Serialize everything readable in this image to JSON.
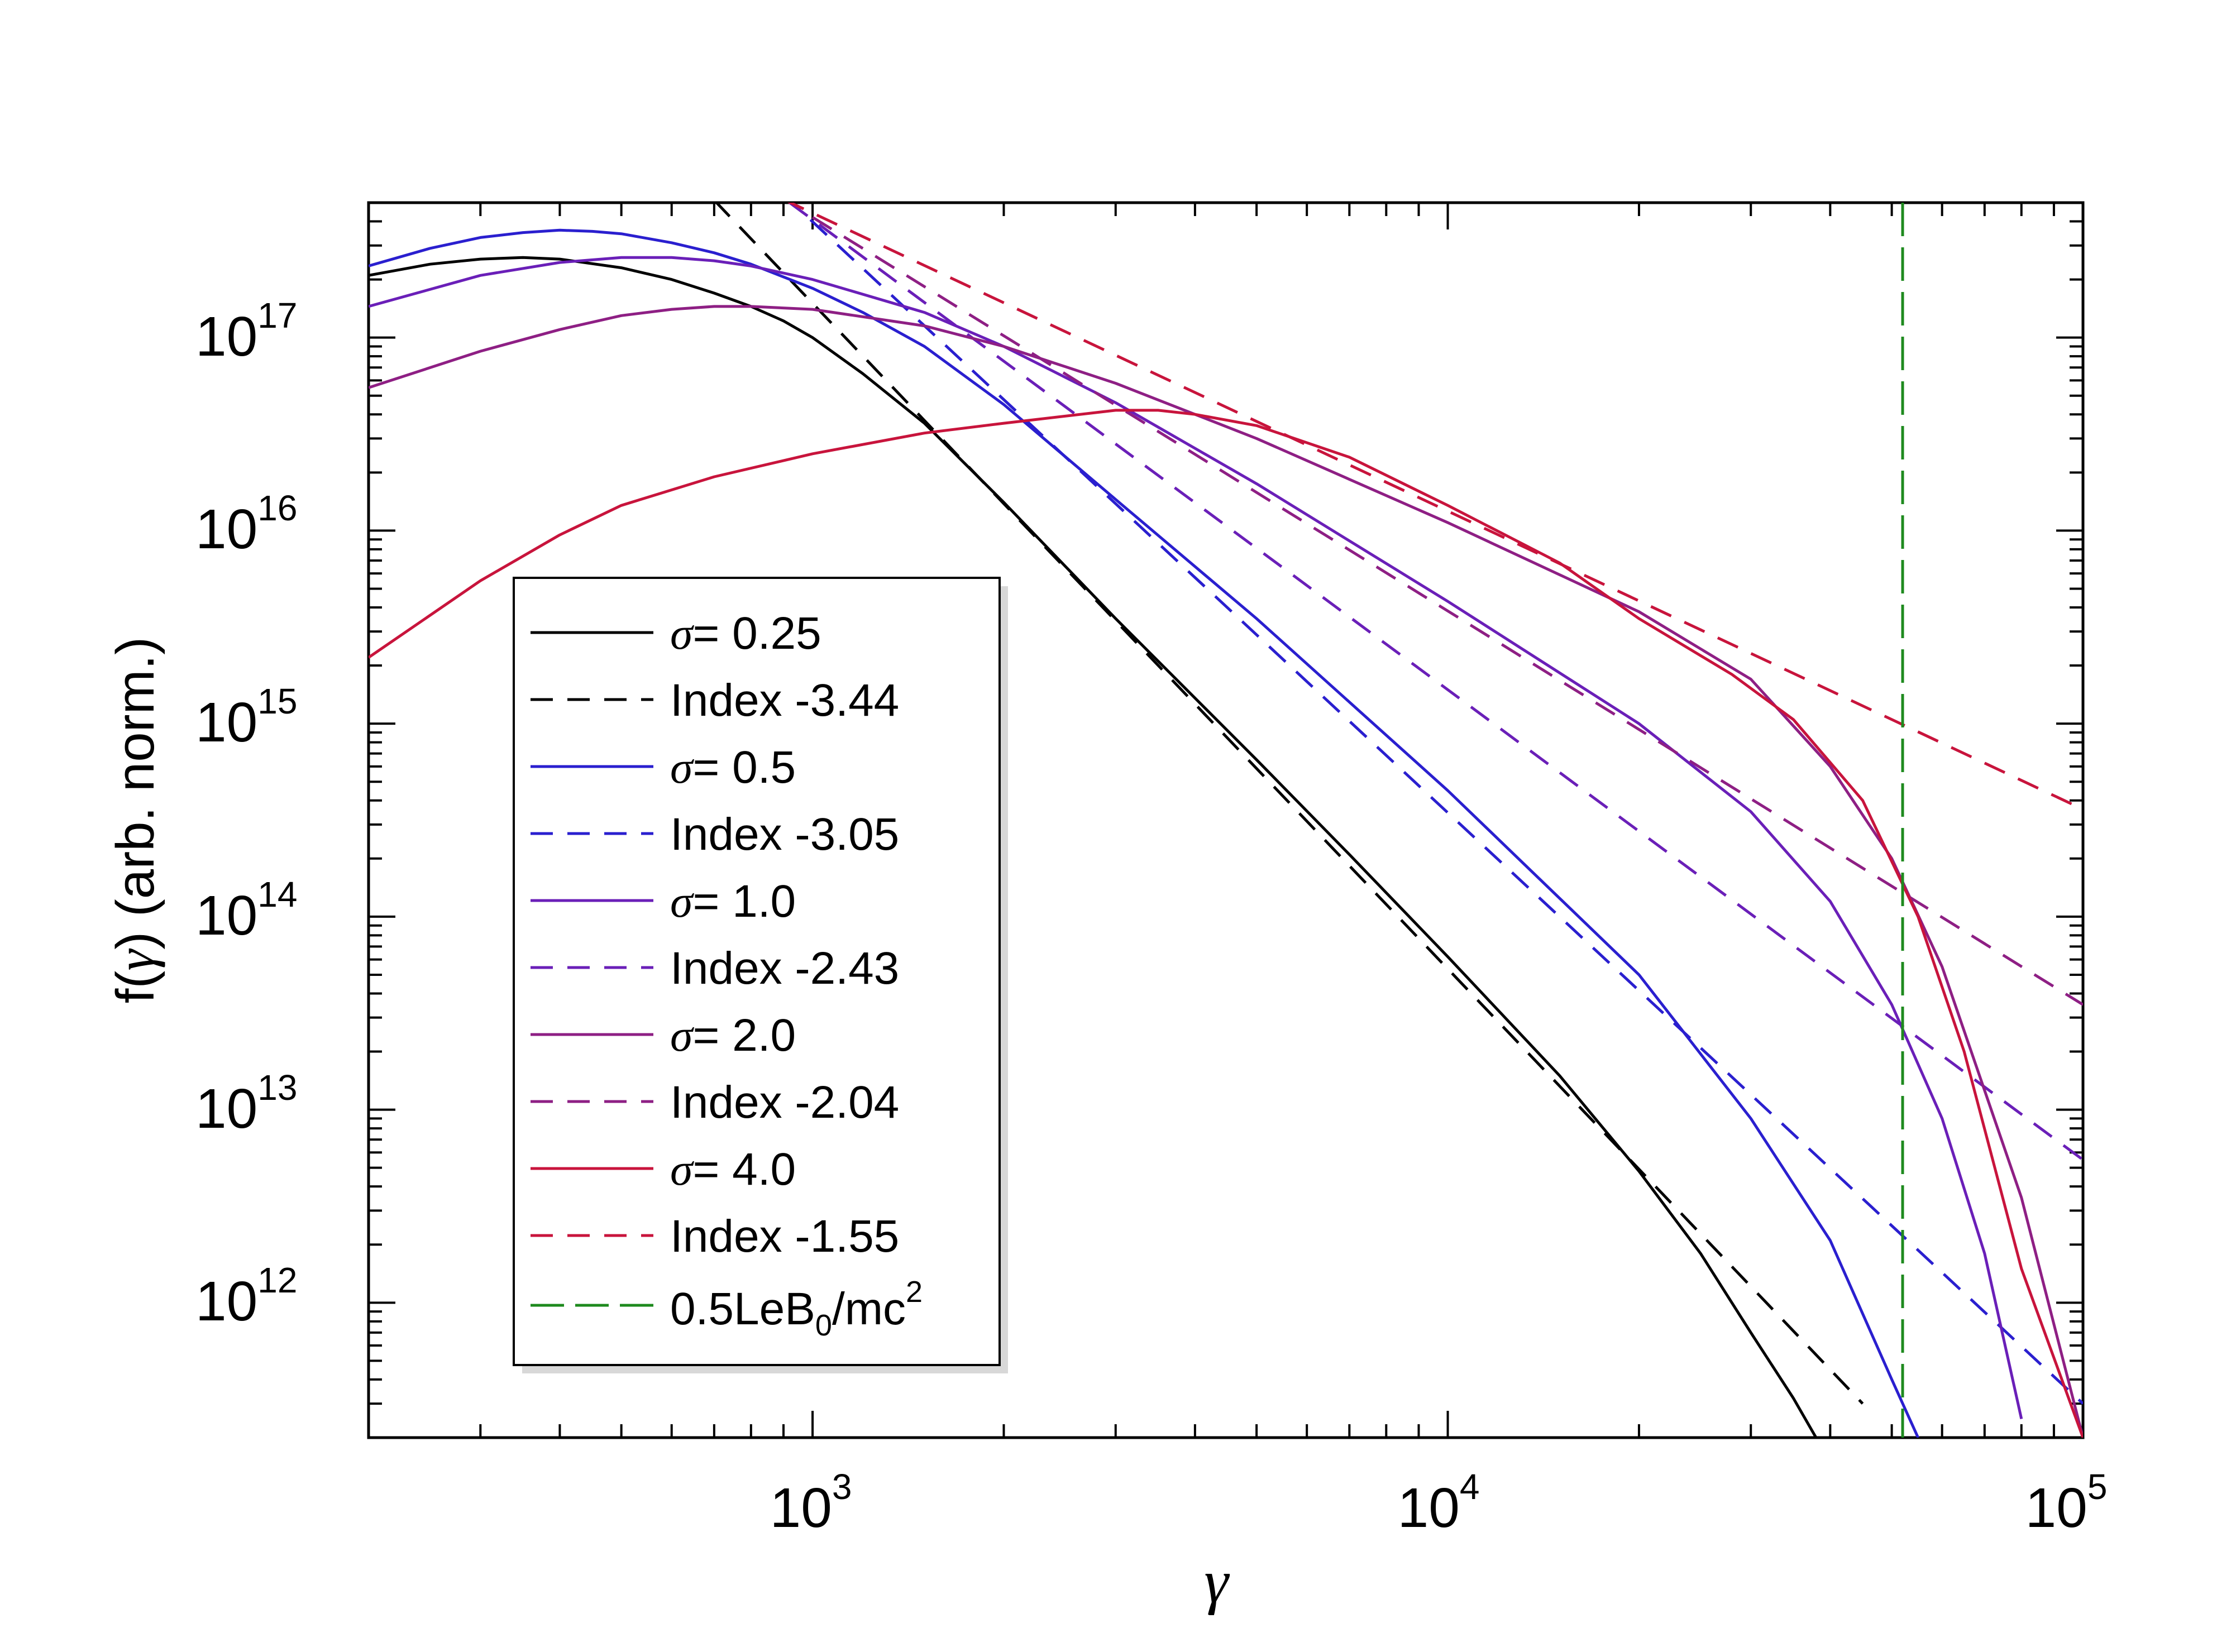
{
  "chart_data": {
    "type": "line",
    "xscale": "log",
    "yscale": "log",
    "xlim": [
      200,
      100000
    ],
    "ylim": [
      200000000000.0,
      5e+17
    ],
    "xlabel": "γ",
    "ylabel_prefix": "f(",
    "ylabel_symbol": "γ",
    "ylabel_suffix": ") (arb. norm.)",
    "x_ticks": [
      {
        "value": 1000,
        "base": "10",
        "exp": "3"
      },
      {
        "value": 10000,
        "base": "10",
        "exp": "4"
      },
      {
        "value": 100000,
        "base": "10",
        "exp": "5"
      }
    ],
    "y_ticks": [
      {
        "value": 1000000000000.0,
        "base": "10",
        "exp": "12"
      },
      {
        "value": 10000000000000.0,
        "base": "10",
        "exp": "13"
      },
      {
        "value": 100000000000000.0,
        "base": "10",
        "exp": "14"
      },
      {
        "value": 1000000000000000.0,
        "base": "10",
        "exp": "15"
      },
      {
        "value": 1e+16,
        "base": "10",
        "exp": "16"
      },
      {
        "value": 1e+17,
        "base": "10",
        "exp": "17"
      }
    ],
    "series": [
      {
        "name": "σ= 0.25",
        "symbol": "σ",
        "value_text": "= 0.25",
        "color": "#000000",
        "dash": "solid",
        "x": [
          200,
          250,
          300,
          350,
          400,
          500,
          600,
          700,
          800,
          900,
          1000,
          1200,
          1500,
          2000,
          3000,
          5000,
          7000,
          10000,
          15000,
          20000,
          25000,
          30000,
          35000,
          38000
        ],
        "y": [
          2.1e+17,
          2.4e+17,
          2.55e+17,
          2.6e+17,
          2.55e+17,
          2.3e+17,
          2e+17,
          1.7e+17,
          1.45e+17,
          1.22e+17,
          1e+17,
          6.5e+16,
          3.6e+16,
          1.4e+16,
          3500000000000000.0,
          650000000000000.0,
          210000000000000.0,
          62000000000000.0,
          15000000000000.0,
          4800000000000.0,
          1800000000000.0,
          700000000000.0,
          320000000000.0,
          200000000000.0
        ]
      },
      {
        "name": "Index -3.44",
        "label": "Index -3.44",
        "color": "#000000",
        "dash": "dashed",
        "x": [
          700,
          45000
        ],
        "y": [
          5.15e+17,
          300000000000.0
        ]
      },
      {
        "name": "σ= 0.5",
        "symbol": "σ",
        "value_text": "= 0.5",
        "color": "#2a1fcf",
        "dash": "solid",
        "x": [
          200,
          250,
          300,
          350,
          400,
          450,
          500,
          600,
          700,
          800,
          1000,
          1200,
          1500,
          2000,
          3000,
          5000,
          10000,
          20000,
          30000,
          40000,
          50000,
          55000
        ],
        "y": [
          2.35e+17,
          2.9e+17,
          3.3e+17,
          3.5e+17,
          3.6e+17,
          3.55e+17,
          3.45e+17,
          3.1e+17,
          2.75e+17,
          2.4e+17,
          1.8e+17,
          1.35e+17,
          9e+16,
          4.5e+16,
          1.45e+16,
          3500000000000000.0,
          450000000000000.0,
          50000000000000.0,
          9000000000000.0,
          2100000000000.0,
          400000000000.0,
          200000000000.0
        ]
      },
      {
        "name": "Index -3.05",
        "label": "Index -3.05",
        "color": "#2a1fcf",
        "dash": "dashed",
        "x": [
          900,
          100000
        ],
        "y": [
          5.5e+17,
          300000000000.0
        ]
      },
      {
        "name": "σ= 1.0",
        "symbol": "σ",
        "value_text": "= 1.0",
        "color": "#6a1fb8",
        "dash": "solid",
        "x": [
          200,
          300,
          400,
          500,
          600,
          700,
          800,
          1000,
          1500,
          2000,
          3000,
          5000,
          10000,
          20000,
          30000,
          40000,
          50000,
          60000,
          70000,
          80000
        ],
        "y": [
          1.45e+17,
          2.1e+17,
          2.45e+17,
          2.6e+17,
          2.6e+17,
          2.5e+17,
          2.35e+17,
          2e+17,
          1.35e+17,
          9e+16,
          4.6e+16,
          1.75e+16,
          4300000000000000.0,
          1000000000000000.0,
          350000000000000.0,
          120000000000000.0,
          35000000000000.0,
          9000000000000.0,
          1800000000000.0,
          250000000000.0
        ]
      },
      {
        "name": "Index -2.43",
        "label": "Index -2.43",
        "color": "#6a1fb8",
        "dash": "dashed",
        "x": [
          920,
          100000
        ],
        "y": [
          5e+17,
          5500000000000.0
        ]
      },
      {
        "name": "σ= 2.0",
        "symbol": "σ",
        "value_text": "= 2.0",
        "color": "#8e1f84",
        "dash": "solid",
        "x": [
          200,
          300,
          400,
          500,
          600,
          700,
          800,
          1000,
          1500,
          2000,
          3000,
          5000,
          10000,
          20000,
          30000,
          40000,
          50000,
          60000,
          80000,
          100000
        ],
        "y": [
          5.5e+16,
          8.5e+16,
          1.1e+17,
          1.3e+17,
          1.4e+17,
          1.45e+17,
          1.45e+17,
          1.4e+17,
          1.15e+17,
          9e+16,
          5.8e+16,
          3e+16,
          1.1e+16,
          3800000000000000.0,
          1700000000000000.0,
          600000000000000.0,
          200000000000000.0,
          55000000000000.0,
          3500000000000.0,
          200000000000.0
        ]
      },
      {
        "name": "Index -2.04",
        "label": "Index -2.04",
        "color": "#8e1f84",
        "dash": "dashed",
        "x": [
          1000,
          100000
        ],
        "y": [
          4.2e+17,
          35000000000000.0
        ]
      },
      {
        "name": "σ= 4.0",
        "symbol": "σ",
        "value_text": "= 4.0",
        "color": "#c8143c",
        "dash": "solid",
        "x": [
          200,
          300,
          400,
          500,
          700,
          1000,
          1500,
          2000,
          3000,
          3500,
          4000,
          5000,
          7000,
          10000,
          15000,
          20000,
          28000,
          35000,
          45000,
          55000,
          65000,
          80000,
          100000
        ],
        "y": [
          2200000000000000.0,
          5500000000000000.0,
          9500000000000000.0,
          1.35e+16,
          1.9e+16,
          2.5e+16,
          3.2e+16,
          3.6e+16,
          4.2e+16,
          4.2e+16,
          4e+16,
          3.5e+16,
          2.4e+16,
          1.35e+16,
          6800000000000000.0,
          3500000000000000.0,
          1800000000000000.0,
          1050000000000000.0,
          400000000000000.0,
          100000000000000.0,
          20000000000000.0,
          1500000000000.0,
          200000000000.0
        ]
      },
      {
        "name": "Index -1.55",
        "label": "Index -1.55",
        "color": "#c8143c",
        "dash": "dashed",
        "x": [
          900,
          100000
        ],
        "y": [
          5.2e+17,
          360000000000000.0
        ]
      },
      {
        "name": "0.5LeB0/mc2",
        "label_main": "0.5LeB",
        "label_sub": "0",
        "label_mid": "/mc",
        "label_sup": "2",
        "color": "#1e8a1e",
        "dash": "longdash",
        "x": [
          52000,
          52000
        ],
        "y": [
          5e+17,
          200000000000.0
        ]
      }
    ]
  }
}
